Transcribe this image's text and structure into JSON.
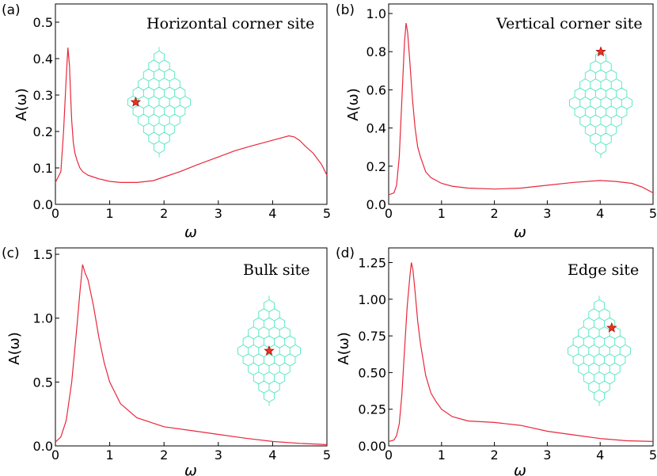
{
  "chart_data": [
    {
      "type": "line",
      "panel": "(a)",
      "title": "Horizontal  corner site",
      "xlabel": "ω",
      "ylabel": "A(ω)",
      "xlim": [
        0,
        5
      ],
      "ylim": [
        0,
        0.55
      ],
      "xticks": [
        0,
        1,
        2,
        3,
        4,
        5
      ],
      "xtick_labels": [
        "0",
        "1",
        "2",
        "3",
        "4",
        "5"
      ],
      "yticks": [
        0,
        0.1,
        0.2,
        0.3,
        0.4,
        0.5
      ],
      "ytick_labels": [
        "0.0",
        "0.1",
        "0.2",
        "0.3",
        "0.4",
        "0.5"
      ],
      "line_color": "#e8283c",
      "inset_marker": "star",
      "x": [
        0,
        0.1,
        0.15,
        0.2,
        0.23,
        0.26,
        0.28,
        0.3,
        0.33,
        0.36,
        0.4,
        0.45,
        0.5,
        0.6,
        0.7,
        0.8,
        1.0,
        1.2,
        1.5,
        1.8,
        2.0,
        2.3,
        2.6,
        3.0,
        3.3,
        3.6,
        3.9,
        4.1,
        4.3,
        4.4,
        4.5,
        4.6,
        4.75,
        4.9,
        5.0
      ],
      "y": [
        0.06,
        0.09,
        0.2,
        0.35,
        0.43,
        0.38,
        0.3,
        0.23,
        0.17,
        0.14,
        0.12,
        0.1,
        0.09,
        0.08,
        0.075,
        0.07,
        0.063,
        0.06,
        0.06,
        0.065,
        0.075,
        0.09,
        0.108,
        0.13,
        0.147,
        0.16,
        0.172,
        0.18,
        0.188,
        0.185,
        0.175,
        0.16,
        0.14,
        0.11,
        0.08
      ]
    },
    {
      "type": "line",
      "panel": "(b)",
      "title": "Vertical corner site",
      "xlabel": "ω",
      "ylabel": "A(ω)",
      "xlim": [
        0,
        5
      ],
      "ylim": [
        0,
        1.05
      ],
      "xticks": [
        0,
        1,
        2,
        3,
        4,
        5
      ],
      "xtick_labels": [
        "0",
        "1",
        "2",
        "3",
        "4",
        "5"
      ],
      "yticks": [
        0,
        0.2,
        0.4,
        0.6,
        0.8,
        1.0
      ],
      "ytick_labels": [
        "0.0",
        "0.2",
        "0.4",
        "0.6",
        "0.8",
        "1.0"
      ],
      "line_color": "#e8283c",
      "inset_marker": "star",
      "x": [
        0,
        0.1,
        0.15,
        0.2,
        0.25,
        0.3,
        0.33,
        0.36,
        0.4,
        0.45,
        0.5,
        0.55,
        0.6,
        0.7,
        0.8,
        1.0,
        1.2,
        1.5,
        2.0,
        2.5,
        3.0,
        3.5,
        4.0,
        4.3,
        4.6,
        4.8,
        5.0
      ],
      "y": [
        0.05,
        0.06,
        0.1,
        0.25,
        0.55,
        0.85,
        0.95,
        0.9,
        0.75,
        0.55,
        0.4,
        0.3,
        0.25,
        0.17,
        0.14,
        0.11,
        0.095,
        0.085,
        0.08,
        0.085,
        0.1,
        0.115,
        0.125,
        0.12,
        0.11,
        0.09,
        0.06
      ]
    },
    {
      "type": "line",
      "panel": "(c)",
      "title": "Bulk site",
      "xlabel": "ω",
      "ylabel": "A(ω)",
      "xlim": [
        0,
        5
      ],
      "ylim": [
        0,
        1.55
      ],
      "xticks": [
        0,
        1,
        2,
        3,
        4,
        5
      ],
      "xtick_labels": [
        "0",
        "1",
        "2",
        "3",
        "4",
        "5"
      ],
      "yticks": [
        0,
        0.5,
        1.0,
        1.5
      ],
      "ytick_labels": [
        "0.0",
        "0.5",
        "1.0",
        "1.5"
      ],
      "line_color": "#e8283c",
      "inset_marker": "star",
      "x": [
        0,
        0.1,
        0.2,
        0.3,
        0.4,
        0.45,
        0.5,
        0.55,
        0.6,
        0.65,
        0.7,
        0.8,
        0.9,
        1.0,
        1.2,
        1.5,
        2.0,
        2.5,
        3.0,
        3.5,
        4.0,
        4.5,
        5.0
      ],
      "y": [
        0.03,
        0.07,
        0.2,
        0.5,
        0.95,
        1.2,
        1.42,
        1.35,
        1.3,
        1.2,
        1.1,
        0.85,
        0.65,
        0.5,
        0.33,
        0.22,
        0.15,
        0.12,
        0.09,
        0.06,
        0.035,
        0.02,
        0.01
      ]
    },
    {
      "type": "line",
      "panel": "(d)",
      "title": "Edge site",
      "xlabel": "ω",
      "ylabel": "A(ω)",
      "xlim": [
        0,
        5
      ],
      "ylim": [
        0,
        1.35
      ],
      "xticks": [
        0,
        1,
        2,
        3,
        4,
        5
      ],
      "xtick_labels": [
        "0",
        "1",
        "2",
        "3",
        "4",
        "5"
      ],
      "yticks": [
        0,
        0.25,
        0.5,
        0.75,
        1.0,
        1.25
      ],
      "ytick_labels": [
        "0.00",
        "0.25",
        "0.50",
        "0.75",
        "1.00",
        "1.25"
      ],
      "line_color": "#e8283c",
      "inset_marker": "star",
      "x": [
        0,
        0.1,
        0.15,
        0.2,
        0.25,
        0.3,
        0.35,
        0.4,
        0.43,
        0.46,
        0.5,
        0.55,
        0.6,
        0.7,
        0.8,
        0.9,
        1.0,
        1.2,
        1.5,
        2.0,
        2.5,
        3.0,
        3.5,
        4.0,
        4.5,
        5.0
      ],
      "y": [
        0.03,
        0.04,
        0.07,
        0.15,
        0.35,
        0.65,
        0.95,
        1.15,
        1.25,
        1.2,
        1.05,
        0.85,
        0.7,
        0.48,
        0.36,
        0.3,
        0.25,
        0.2,
        0.17,
        0.16,
        0.14,
        0.1,
        0.075,
        0.05,
        0.035,
        0.03
      ]
    }
  ],
  "colors": {
    "line": "#e8283c",
    "lattice": "#4fe6c0",
    "star_fill": "#e8351e",
    "star_edge": "#b01010"
  }
}
